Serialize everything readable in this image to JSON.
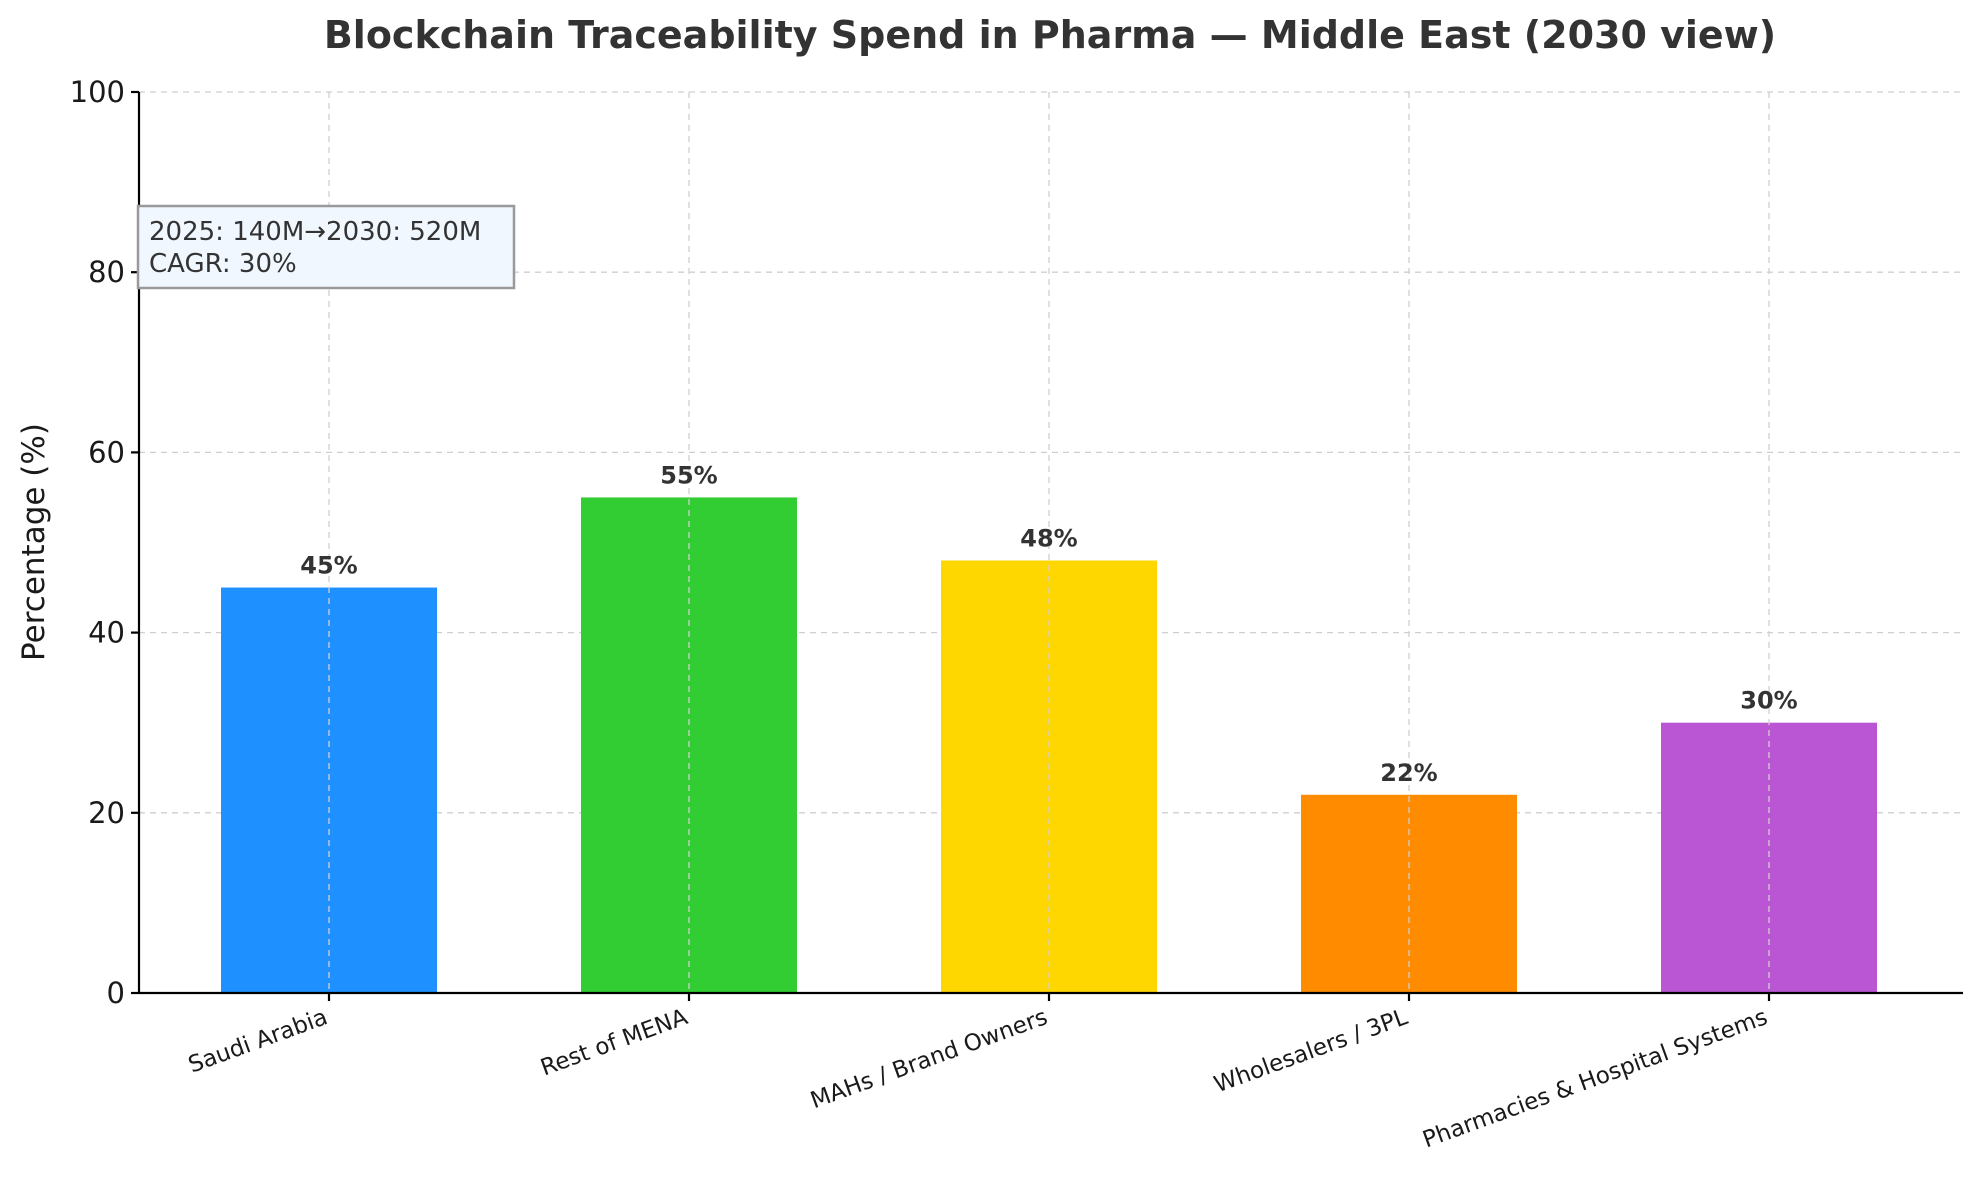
{
  "chart_data": {
    "type": "bar",
    "title": "Blockchain Traceability Spend in Pharma — Middle East (2030 view)",
    "xlabel": "",
    "ylabel": "Percentage (%)",
    "ylim": [
      0,
      100
    ],
    "yticks": [
      0,
      20,
      40,
      60,
      80,
      100
    ],
    "grid": true,
    "categories": [
      "Saudi Arabia",
      "Rest of MENA",
      "MAHs / Brand Owners",
      "Wholesalers / 3PL",
      "Pharmacies & Hospital Systems"
    ],
    "values": [
      45,
      55,
      48,
      22,
      30
    ],
    "value_labels": [
      "45%",
      "55%",
      "48%",
      "22%",
      "30%"
    ],
    "colors": [
      "#1e90ff",
      "#32cd32",
      "#ffd700",
      "#ff8c00",
      "#ba55d3"
    ],
    "annotation": {
      "line1": "2025: 140M→2030: 520M",
      "line2": "CAGR: 30%"
    }
  }
}
